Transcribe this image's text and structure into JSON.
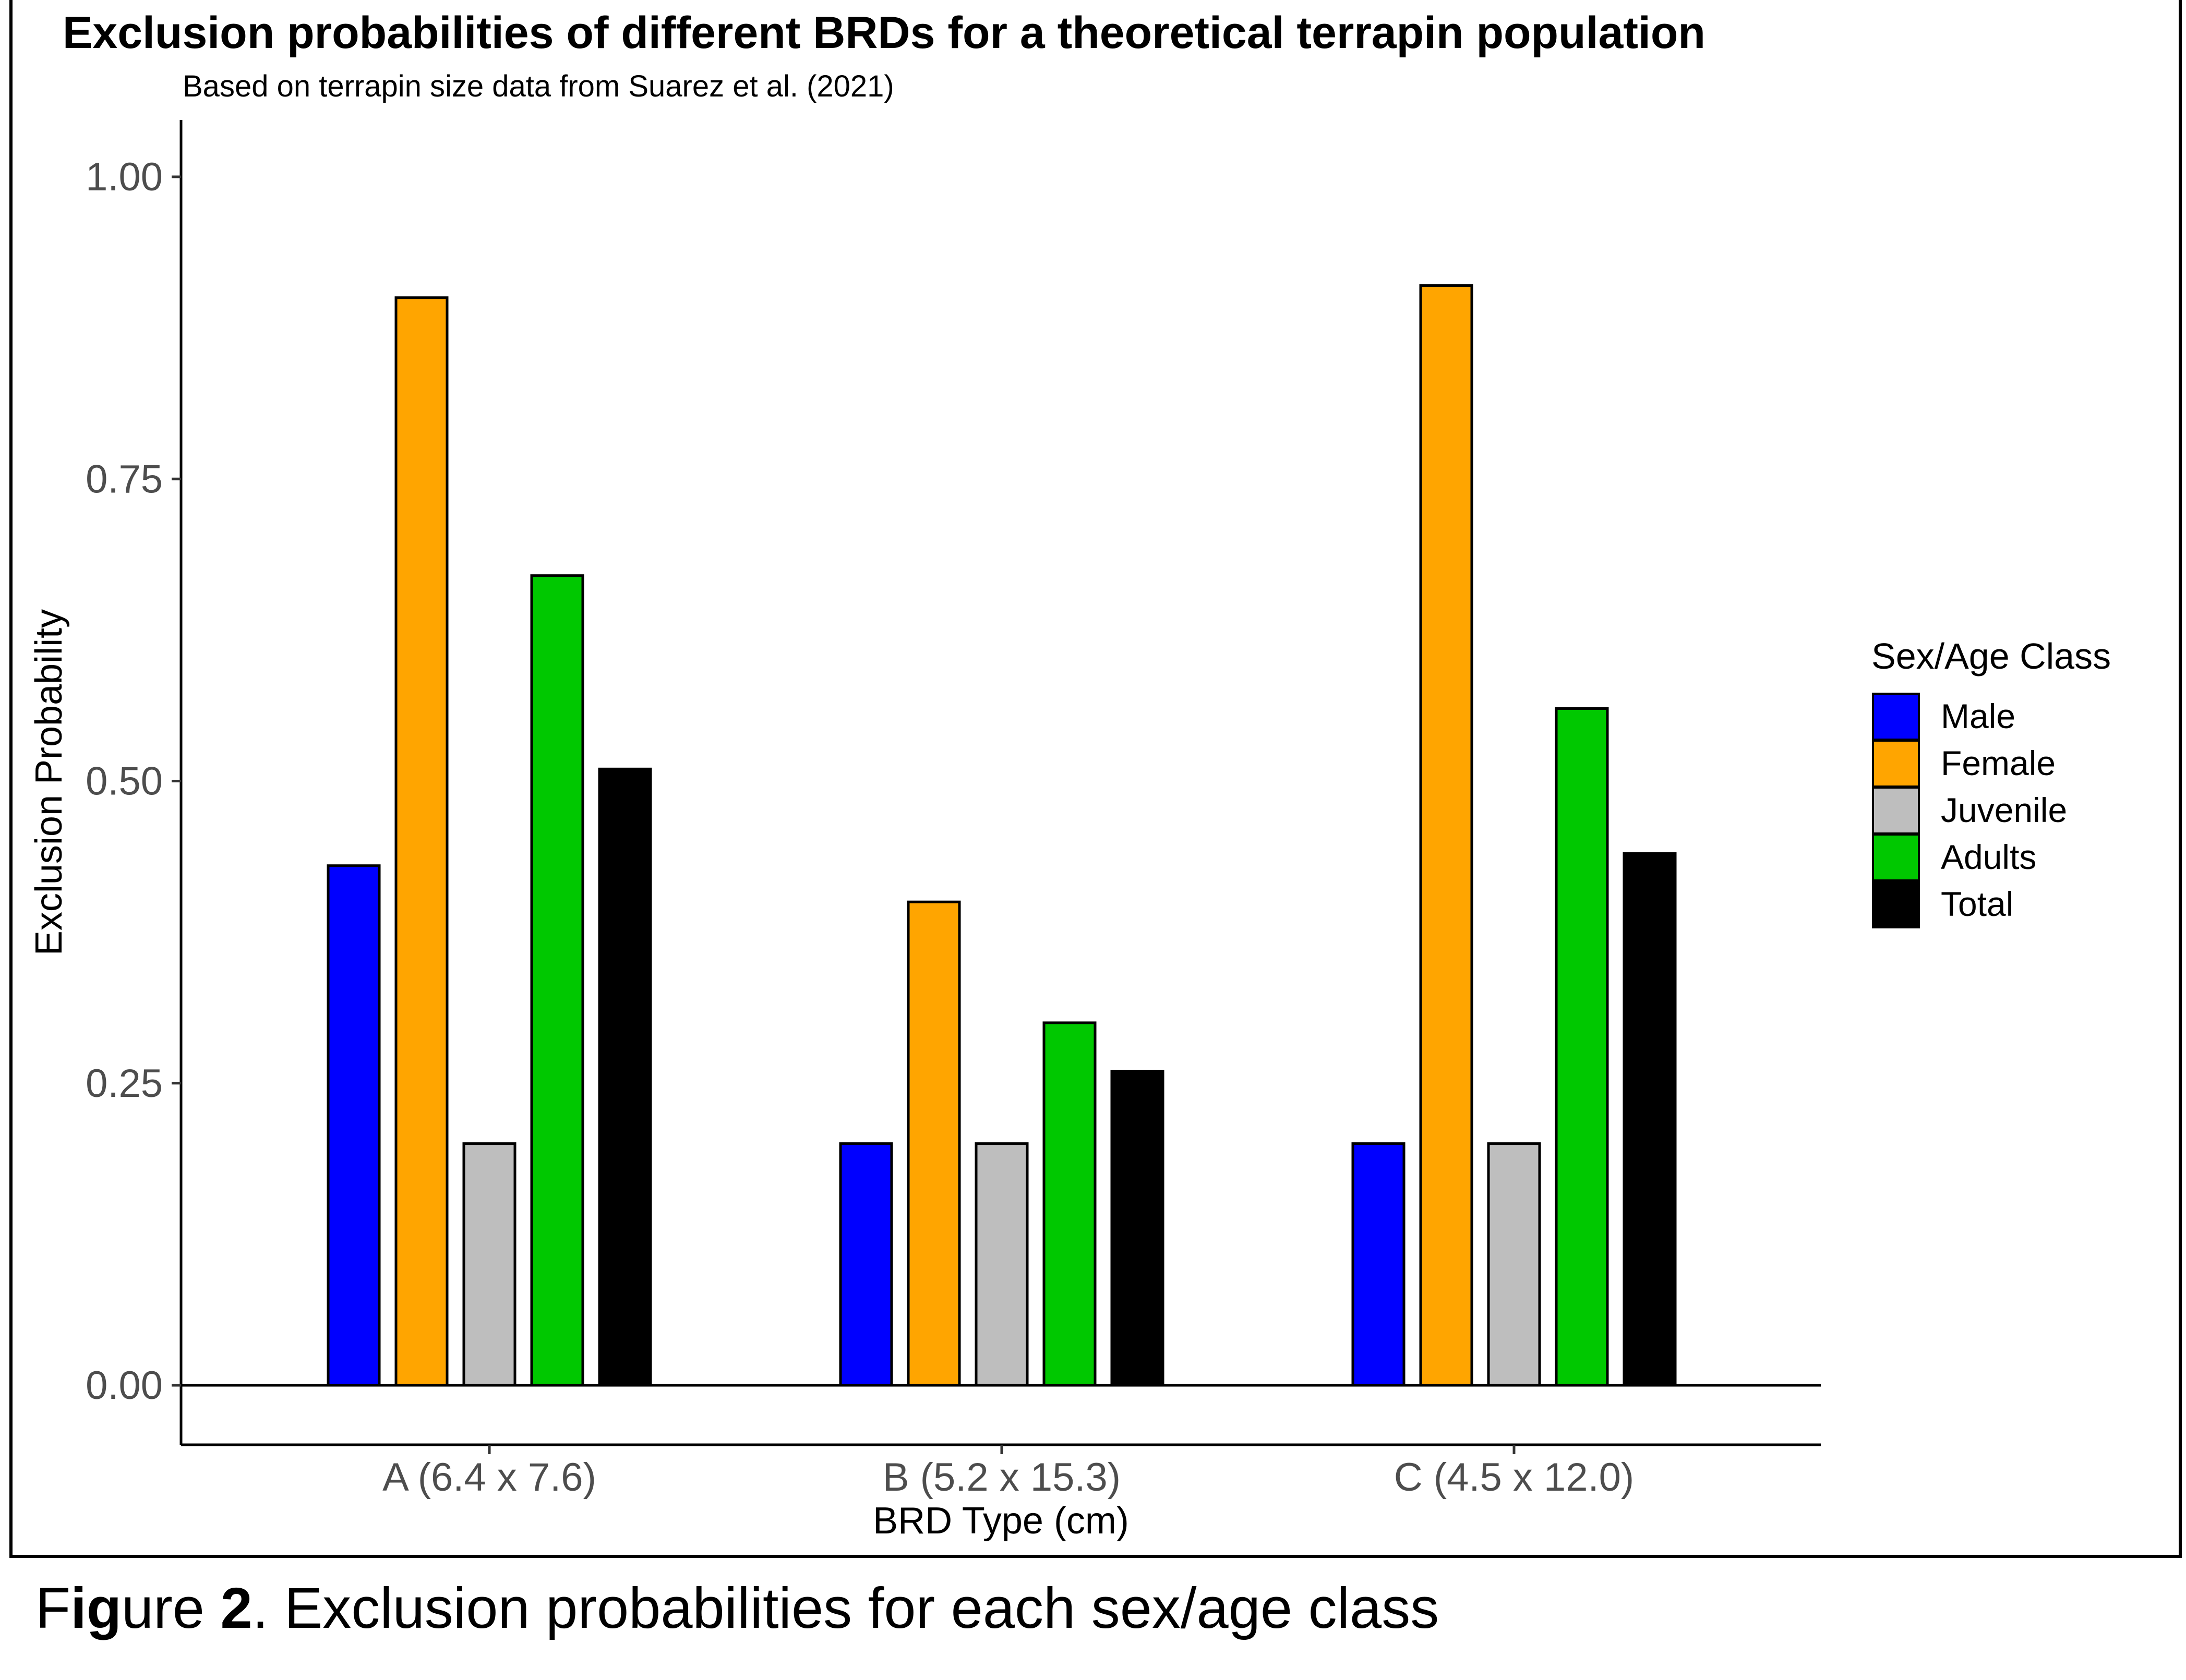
{
  "chart_data": {
    "type": "bar",
    "title": "Exclusion probabilities of different BRDs for a theoretical terrapin population",
    "subtitle": "Based on terrapin size data from Suarez et al. (2021)",
    "xlabel": "BRD Type (cm)",
    "ylabel": "Exclusion Probability",
    "categories": [
      "A (6.4 x 7.6)",
      "B (5.2 x 15.3)",
      "C (4.5 x 12.0)"
    ],
    "ylim": [
      -0.05,
      1.05
    ],
    "yticks": [
      0.0,
      0.25,
      0.5,
      0.75,
      1.0
    ],
    "ytick_labels": [
      "0.00",
      "0.25",
      "0.50",
      "0.75",
      "1.00"
    ],
    "legend_title": "Sex/Age Class",
    "legend_position": "right",
    "grid": false,
    "series": [
      {
        "name": "Male",
        "color": "#0000FF",
        "values": [
          0.43,
          0.2,
          0.2
        ]
      },
      {
        "name": "Female",
        "color": "#FFA500",
        "values": [
          0.9,
          0.4,
          0.91
        ]
      },
      {
        "name": "Juvenile",
        "color": "#BEBEBE",
        "values": [
          0.2,
          0.2,
          0.2
        ]
      },
      {
        "name": "Adults",
        "color": "#00C800",
        "values": [
          0.67,
          0.3,
          0.56
        ]
      },
      {
        "name": "Total",
        "color": "#000000",
        "values": [
          0.51,
          0.26,
          0.44
        ]
      }
    ]
  },
  "caption": {
    "prefix_regular_1": "F",
    "prefix_bold_1": "ig",
    "prefix_regular_2": "ure ",
    "prefix_bold_2": "2",
    "text": ". Exclusion probabilities for each sex/age class"
  }
}
